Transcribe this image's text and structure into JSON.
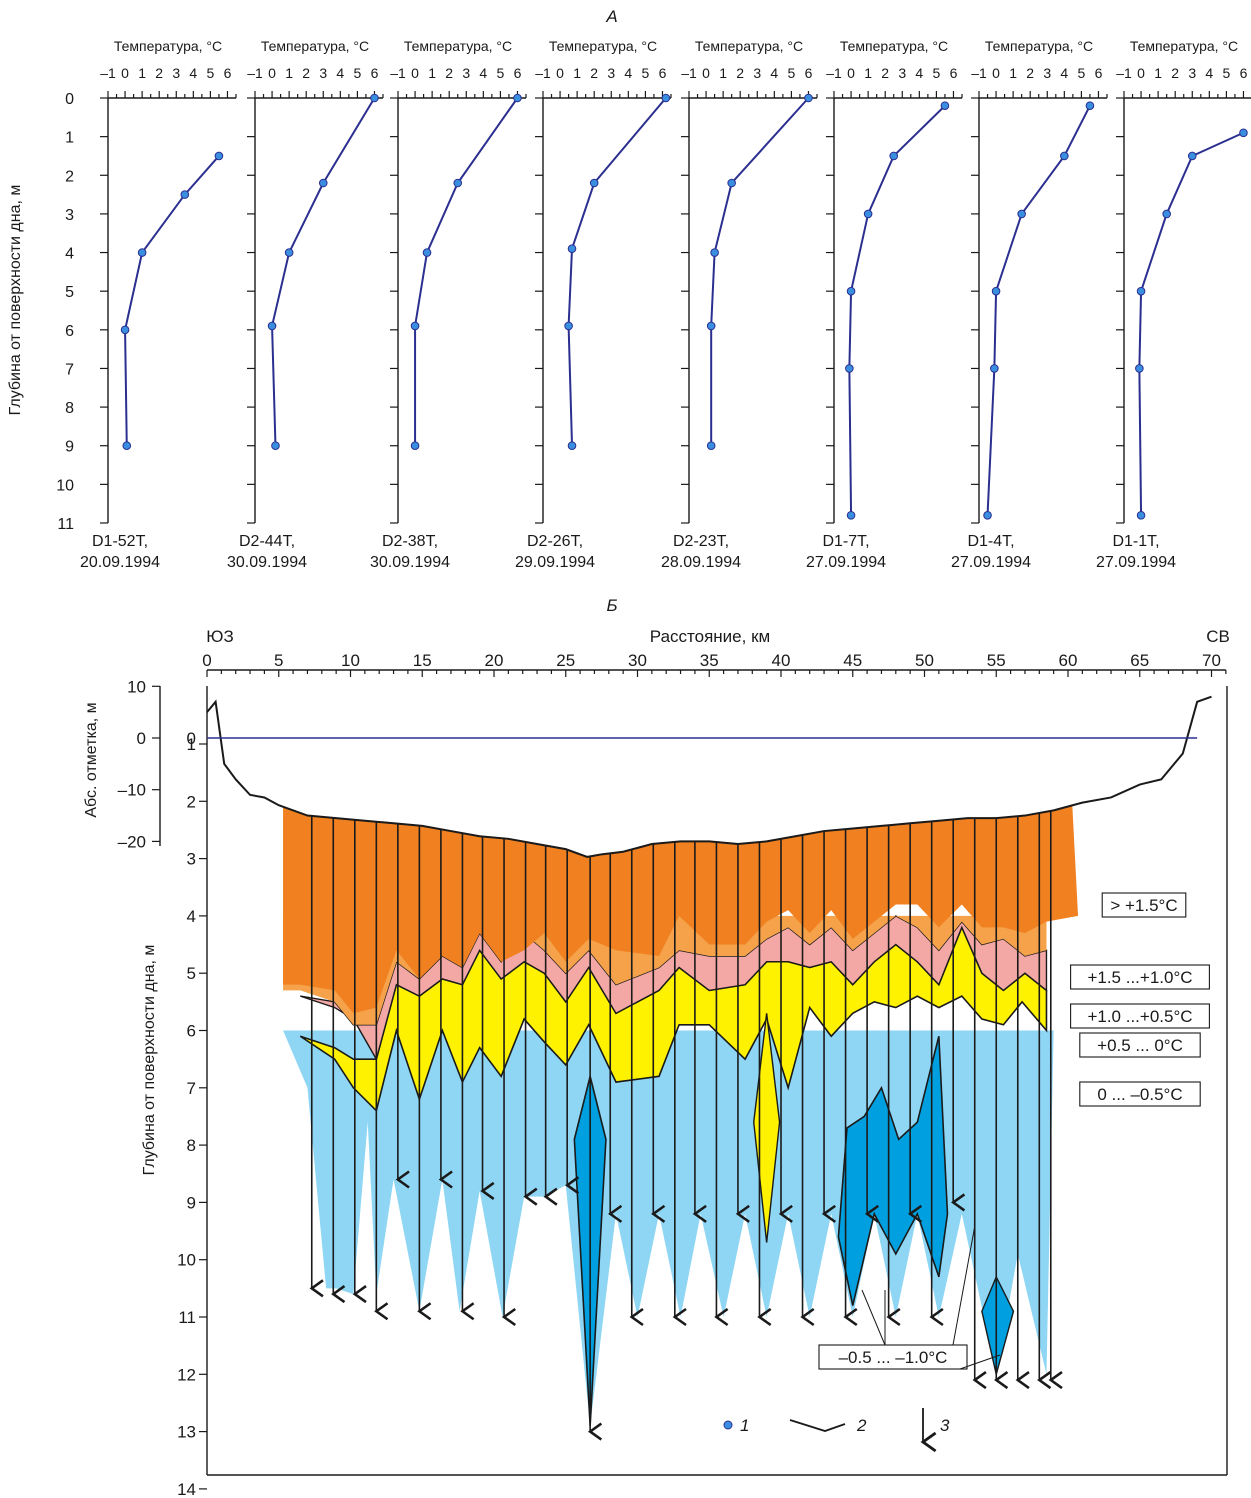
{
  "chart_data": [
    {
      "type": "line",
      "panel": "А",
      "xlabel": "Температура, °C",
      "ylabel": "Глубина от поверхности дна, м",
      "xlim": [
        -1,
        6.5
      ],
      "x_ticks": [
        -1,
        0,
        1,
        2,
        3,
        4,
        5,
        6
      ],
      "ylim": [
        0,
        11
      ],
      "y_ticks": [
        0,
        1,
        2,
        3,
        4,
        5,
        6,
        7,
        8,
        9,
        10,
        11
      ],
      "colors": {
        "line": "#2b2f8f",
        "point": "#3a8ee0"
      },
      "series": [
        {
          "name": "D1-52T",
          "date": "20.09.1994",
          "points": [
            [
              5.5,
              1.5
            ],
            [
              3.5,
              2.5
            ],
            [
              1.0,
              4.0
            ],
            [
              0.0,
              6.0
            ],
            [
              0.1,
              9.0
            ]
          ]
        },
        {
          "name": "D2-44T",
          "date": "30.09.1994",
          "points": [
            [
              6.0,
              0.0
            ],
            [
              3.0,
              2.2
            ],
            [
              1.0,
              4.0
            ],
            [
              0.0,
              5.9
            ],
            [
              0.2,
              9.0
            ]
          ]
        },
        {
          "name": "D2-38T",
          "date": "30.09.1994",
          "points": [
            [
              6.0,
              0.0
            ],
            [
              2.5,
              2.2
            ],
            [
              0.7,
              4.0
            ],
            [
              0.0,
              5.9
            ],
            [
              0.0,
              9.0
            ]
          ]
        },
        {
          "name": "D2-26T",
          "date": "29.09.1994",
          "points": [
            [
              6.2,
              0.0
            ],
            [
              2.0,
              2.2
            ],
            [
              0.7,
              3.9
            ],
            [
              0.5,
              5.9
            ],
            [
              0.7,
              9.0
            ]
          ]
        },
        {
          "name": "D2-23T",
          "date": "28.09.1994",
          "points": [
            [
              6.0,
              0.0
            ],
            [
              1.5,
              2.2
            ],
            [
              0.5,
              4.0
            ],
            [
              0.3,
              5.9
            ],
            [
              0.3,
              9.0
            ]
          ]
        },
        {
          "name": "D1-7T",
          "date": "27.09.1994",
          "points": [
            [
              5.5,
              0.2
            ],
            [
              2.5,
              1.5
            ],
            [
              1.0,
              3.0
            ],
            [
              0.0,
              5.0
            ],
            [
              -0.1,
              7.0
            ],
            [
              0.0,
              10.8
            ]
          ]
        },
        {
          "name": "D1-4T",
          "date": "27.09.1994",
          "points": [
            [
              5.5,
              0.2
            ],
            [
              4.0,
              1.5
            ],
            [
              1.5,
              3.0
            ],
            [
              0.0,
              5.0
            ],
            [
              -0.1,
              7.0
            ],
            [
              -0.5,
              10.8
            ]
          ]
        },
        {
          "name": "D1-1T",
          "date": "27.09.1994",
          "points": [
            [
              6.0,
              0.9
            ],
            [
              3.0,
              1.5
            ],
            [
              1.5,
              3.0
            ],
            [
              0.0,
              5.0
            ],
            [
              -0.1,
              7.0
            ],
            [
              0.0,
              10.8
            ]
          ]
        }
      ]
    },
    {
      "type": "area",
      "panel": "Б",
      "x_title": "Расстояние, км",
      "x_ticks": [
        0,
        5,
        10,
        15,
        20,
        25,
        30,
        35,
        40,
        45,
        50,
        55,
        60,
        65,
        70
      ],
      "xlim": [
        0,
        71
      ],
      "end_labels": {
        "left": "ЮЗ",
        "right": "СВ"
      },
      "y_abs_label": "Абс. отметка, м",
      "y_abs_ticks": [
        10,
        0,
        -10,
        -20
      ],
      "y_depth_label": "Глубина от поверхности дна, м",
      "y_depth_ticks": [
        1,
        2,
        3,
        4,
        5,
        6,
        7,
        8,
        9,
        10,
        11,
        12,
        13,
        14
      ],
      "colors": {
        "gt_1_5": "#f08020",
        "1_5_to_1_0": "#f5a24a",
        "1_0_to_0_5": "#f4a8a6",
        "0_5_to_0": "#fff200",
        "0_to_m0_5": "#8fd6f5",
        "m0_5_to_m1_0": "#00a0e0",
        "sea_level": "#2b2f8f",
        "outline": "#1a1a1a"
      },
      "zone_labels": [
        "> +1.5°C",
        "+1.5 ...+1.0°C",
        "+1.0 ...+0.5°C",
        "+0.5 ... 0°C",
        "0 ... –0.5°C",
        "–0.5 ... –1.0°C"
      ],
      "bottom_profile_abs_m": [
        [
          0,
          5
        ],
        [
          0.6,
          7
        ],
        [
          1.2,
          -5
        ],
        [
          2,
          -8
        ],
        [
          3,
          -11
        ],
        [
          4,
          -11.5
        ],
        [
          5,
          -13
        ],
        [
          7,
          -15
        ],
        [
          9,
          -15.5
        ],
        [
          11,
          -16
        ],
        [
          13,
          -16.5
        ],
        [
          15,
          -17
        ],
        [
          17,
          -18
        ],
        [
          19,
          -19
        ],
        [
          21,
          -19.5
        ],
        [
          23,
          -20.5
        ],
        [
          25,
          -21.5
        ],
        [
          26.5,
          -23
        ],
        [
          27.5,
          -22.5
        ],
        [
          29,
          -22
        ],
        [
          31,
          -20.5
        ],
        [
          33,
          -20
        ],
        [
          35,
          -20
        ],
        [
          37,
          -20.5
        ],
        [
          39,
          -20
        ],
        [
          41,
          -19
        ],
        [
          43,
          -18
        ],
        [
          45,
          -17.5
        ],
        [
          47,
          -17
        ],
        [
          49,
          -16.5
        ],
        [
          51,
          -16
        ],
        [
          53,
          -15.5
        ],
        [
          55,
          -15.5
        ],
        [
          57,
          -15
        ],
        [
          59,
          -14
        ],
        [
          61,
          -12.5
        ],
        [
          63,
          -11.5
        ],
        [
          65,
          -9
        ],
        [
          66.5,
          -8
        ],
        [
          68,
          -3
        ],
        [
          69,
          7
        ],
        [
          70,
          8
        ]
      ],
      "legend": [
        {
          "id": "1",
          "meaning": "point"
        },
        {
          "id": "2",
          "meaning": "line"
        },
        {
          "id": "3",
          "meaning": "arrow"
        }
      ]
    }
  ],
  "text": {
    "panel_a": "А",
    "panel_b": "Б",
    "temp_label": "Температура, °C",
    "depth_label_a": "Глубина от поверхности дна, м",
    "x_title_b": "Расстояние, км",
    "left_end": "ЮЗ",
    "right_end": "СВ",
    "abs_label": "Абс. отметка, м",
    "depth_label_b": "Глубина от поверхности дна, м",
    "legend_1": "1",
    "legend_2": "2",
    "legend_3": "3"
  }
}
